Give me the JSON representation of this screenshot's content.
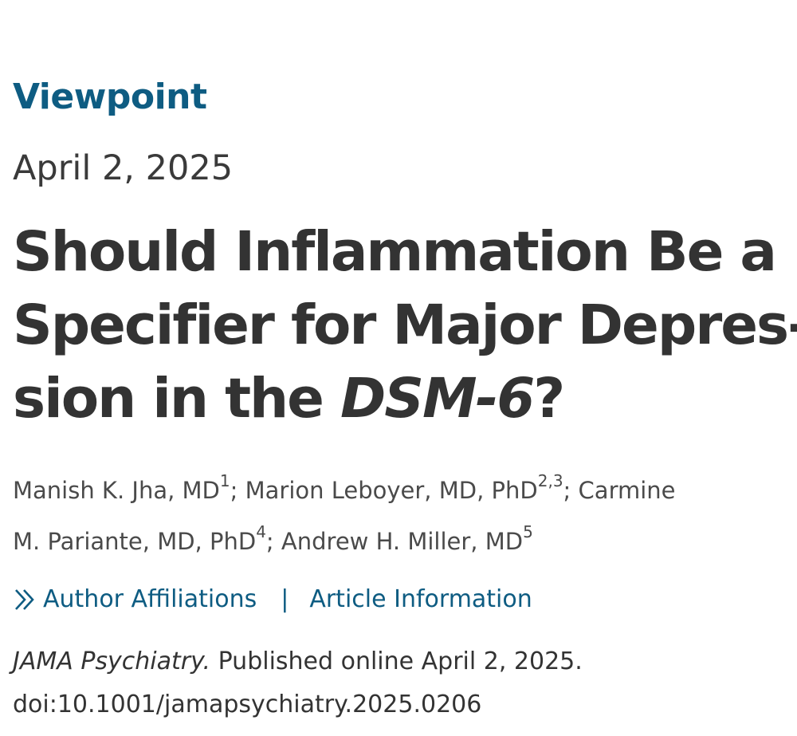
{
  "article": {
    "type": "Viewpoint",
    "date": "April 2, 2025",
    "title": {
      "line1": "Should Inflammation Be a",
      "line2": "Specifier for Major Depres-",
      "line3_pre": "sion in the ",
      "line3_italic": "DSM-6",
      "line3_post": "?"
    },
    "authors": [
      {
        "name": "Manish K. Jha, MD",
        "sup": "1",
        "sep": "; "
      },
      {
        "name": "Marion Leboyer, MD, PhD",
        "sup": "2,3",
        "sep": "; "
      },
      {
        "name_part1": "Carmine",
        "name_part2": "M. Pariante, MD, PhD",
        "sup": "4",
        "sep": "; "
      },
      {
        "name": "Andrew H. Miller, MD",
        "sup": "5",
        "sep": ""
      }
    ],
    "links": {
      "chevron_icon": "double-chevron-right-icon",
      "author_affiliations": "Author Affiliations",
      "separator": "|",
      "article_information": "Article Information"
    },
    "citation": {
      "journal": "JAMA Psychiatry.",
      "published": " Published online April 2, 2025.",
      "doi": "doi:10.1001/jamapsychiatry.2025.0206"
    }
  },
  "colors": {
    "accent": "#0e5c82",
    "text": "#333333"
  }
}
